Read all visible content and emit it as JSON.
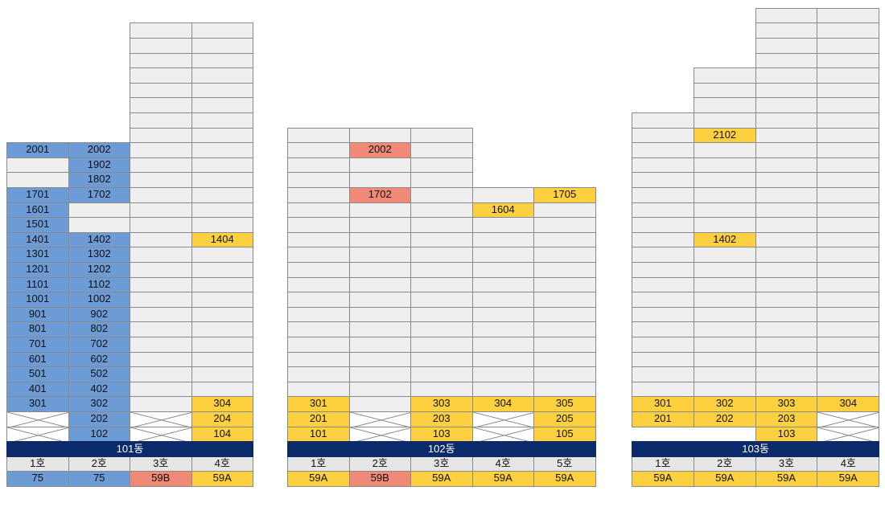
{
  "colors": {
    "empty": "#efefef",
    "blue": "#6d9bd6",
    "yellow": "#fcd03f",
    "salmon": "#f08a76",
    "band": "#0b2a6b",
    "header": "#e6e6e6",
    "cross": "#ffffff"
  },
  "buildings": [
    {
      "name": "101동",
      "headers": [
        "1호",
        "2호",
        "3호",
        "4호"
      ],
      "types": [
        {
          "label": "75",
          "color": "blue"
        },
        {
          "label": "75",
          "color": "blue"
        },
        {
          "label": "59B",
          "color": "salmon"
        },
        {
          "label": "59A",
          "color": "yellow"
        }
      ],
      "columns": [
        {
          "top_floor": 20,
          "start_floor": 1,
          "cells": {
            "20": [
              "2001",
              "blue"
            ],
            "19": [
              "",
              "empty"
            ],
            "18": [
              "",
              "empty"
            ],
            "17": [
              "1701",
              "blue"
            ],
            "16": [
              "1601",
              "blue"
            ],
            "15": [
              "1501",
              "blue"
            ],
            "14": [
              "1401",
              "blue"
            ],
            "13": [
              "1301",
              "blue"
            ],
            "12": [
              "1201",
              "blue"
            ],
            "11": [
              "1101",
              "blue"
            ],
            "10": [
              "1001",
              "blue"
            ],
            "9": [
              "901",
              "blue"
            ],
            "8": [
              "801",
              "blue"
            ],
            "7": [
              "701",
              "blue"
            ],
            "6": [
              "601",
              "blue"
            ],
            "5": [
              "501",
              "blue"
            ],
            "4": [
              "401",
              "blue"
            ],
            "3": [
              "301",
              "blue"
            ],
            "2": [
              "",
              "cross"
            ],
            "1": [
              "",
              "cross"
            ]
          }
        },
        {
          "top_floor": 20,
          "start_floor": 1,
          "cells": {
            "20": [
              "2002",
              "blue"
            ],
            "19": [
              "1902",
              "blue"
            ],
            "18": [
              "1802",
              "blue"
            ],
            "17": [
              "1702",
              "blue"
            ],
            "16": [
              "",
              "empty"
            ],
            "15": [
              "",
              "empty"
            ],
            "14": [
              "1402",
              "blue"
            ],
            "13": [
              "1302",
              "blue"
            ],
            "12": [
              "1202",
              "blue"
            ],
            "11": [
              "1102",
              "blue"
            ],
            "10": [
              "1002",
              "blue"
            ],
            "9": [
              "902",
              "blue"
            ],
            "8": [
              "802",
              "blue"
            ],
            "7": [
              "702",
              "blue"
            ],
            "6": [
              "602",
              "blue"
            ],
            "5": [
              "502",
              "blue"
            ],
            "4": [
              "402",
              "blue"
            ],
            "3": [
              "302",
              "blue"
            ],
            "2": [
              "202",
              "blue"
            ],
            "1": [
              "102",
              "blue"
            ]
          }
        },
        {
          "top_floor": 28,
          "start_floor": 1,
          "cells": {
            "2": [
              "",
              "cross"
            ],
            "1": [
              "",
              "cross"
            ]
          }
        },
        {
          "top_floor": 28,
          "start_floor": 1,
          "cells": {
            "14": [
              "1404",
              "yellow"
            ],
            "3": [
              "304",
              "yellow"
            ],
            "2": [
              "204",
              "yellow"
            ],
            "1": [
              "104",
              "yellow"
            ]
          }
        }
      ]
    },
    {
      "name": "102동",
      "headers": [
        "1호",
        "2호",
        "3호",
        "4호",
        "5호"
      ],
      "types": [
        {
          "label": "59A",
          "color": "yellow"
        },
        {
          "label": "59B",
          "color": "salmon"
        },
        {
          "label": "59A",
          "color": "yellow"
        },
        {
          "label": "59A",
          "color": "yellow"
        },
        {
          "label": "59A",
          "color": "yellow"
        }
      ],
      "columns": [
        {
          "top_floor": 21,
          "start_floor": 1,
          "cells": {
            "3": [
              "301",
              "yellow"
            ],
            "2": [
              "201",
              "yellow"
            ],
            "1": [
              "101",
              "yellow"
            ]
          }
        },
        {
          "top_floor": 21,
          "start_floor": 1,
          "cells": {
            "20": [
              "2002",
              "salmon"
            ],
            "17": [
              "1702",
              "salmon"
            ],
            "2": [
              "",
              "cross"
            ],
            "1": [
              "",
              "cross"
            ]
          }
        },
        {
          "top_floor": 21,
          "start_floor": 1,
          "cells": {
            "3": [
              "303",
              "yellow"
            ],
            "2": [
              "203",
              "yellow"
            ],
            "1": [
              "103",
              "yellow"
            ]
          }
        },
        {
          "top_floor": 17,
          "start_floor": 1,
          "cells": {
            "16": [
              "1604",
              "yellow"
            ],
            "3": [
              "304",
              "yellow"
            ],
            "2": [
              "",
              "cross"
            ],
            "1": [
              "",
              "cross"
            ]
          }
        },
        {
          "top_floor": 17,
          "start_floor": 1,
          "cells": {
            "17": [
              "1705",
              "yellow"
            ],
            "3": [
              "305",
              "yellow"
            ],
            "2": [
              "205",
              "yellow"
            ],
            "1": [
              "105",
              "yellow"
            ]
          }
        }
      ]
    },
    {
      "name": "103동",
      "headers": [
        "1호",
        "2호",
        "3호",
        "4호"
      ],
      "types": [
        {
          "label": "59A",
          "color": "yellow"
        },
        {
          "label": "59A",
          "color": "yellow"
        },
        {
          "label": "59A",
          "color": "yellow"
        },
        {
          "label": "59A",
          "color": "yellow"
        }
      ],
      "columns": [
        {
          "top_floor": 22,
          "start_floor": 2,
          "cells": {
            "3": [
              "301",
              "yellow"
            ],
            "2": [
              "201",
              "yellow"
            ]
          }
        },
        {
          "top_floor": 25,
          "start_floor": 2,
          "cells": {
            "21": [
              "2102",
              "yellow"
            ],
            "14": [
              "1402",
              "yellow"
            ],
            "3": [
              "302",
              "yellow"
            ],
            "2": [
              "202",
              "yellow"
            ]
          }
        },
        {
          "top_floor": 29,
          "start_floor": 1,
          "cells": {
            "3": [
              "303",
              "yellow"
            ],
            "2": [
              "203",
              "yellow"
            ],
            "1": [
              "103",
              "yellow"
            ]
          }
        },
        {
          "top_floor": 29,
          "start_floor": 1,
          "cells": {
            "3": [
              "304",
              "yellow"
            ],
            "2": [
              "",
              "cross"
            ],
            "1": [
              "",
              "cross"
            ]
          }
        }
      ]
    }
  ]
}
